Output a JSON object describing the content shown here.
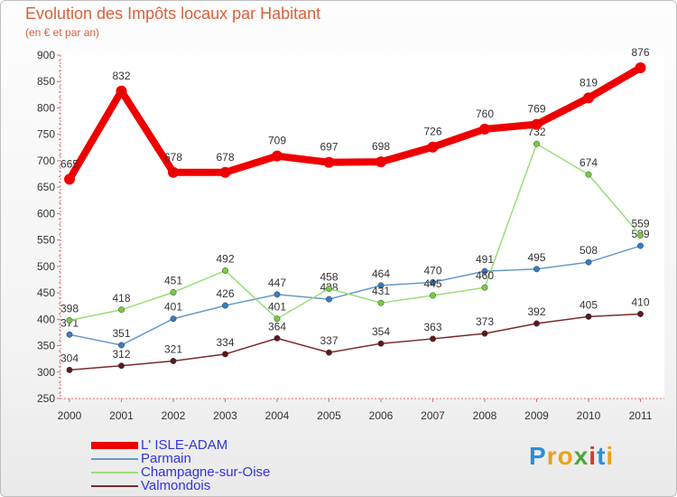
{
  "header": {
    "title": "Evolution des Impôts locaux par Habitant",
    "subtitle": "(en € et par an)"
  },
  "logo": {
    "letters": [
      "P",
      "r",
      "o",
      "x",
      "i",
      "t",
      "i"
    ],
    "colors": [
      "#2a8fd6",
      "#e8a21c",
      "#e8a21c",
      "#4aa83a",
      "#d23a2a",
      "#2a8fd6",
      "#e8a21c"
    ]
  },
  "chart_data": {
    "type": "line",
    "title": "Evolution des Impôts locaux par Habitant",
    "subtitle": "(en € et par an)",
    "xlabel": "",
    "ylabel": "",
    "categories": [
      "2000",
      "2001",
      "2002",
      "2003",
      "2004",
      "2005",
      "2006",
      "2007",
      "2008",
      "2009",
      "2010",
      "2011"
    ],
    "ylim": [
      250,
      900
    ],
    "yticks": [
      250,
      300,
      350,
      400,
      450,
      500,
      550,
      600,
      650,
      700,
      750,
      800,
      850,
      900
    ],
    "grid": false,
    "legend_position": "bottom-left",
    "series": [
      {
        "name": "L' ISLE-ADAM",
        "values": [
          665,
          832,
          678,
          678,
          709,
          697,
          698,
          726,
          760,
          769,
          819,
          876
        ],
        "labels": [
          "665",
          "832",
          "678",
          "678",
          "709",
          "697",
          "698",
          "726",
          "760",
          "769",
          "819",
          "876"
        ],
        "color": "#ee0000",
        "marker_color": "#ee0000",
        "width": 8,
        "marker_r": 6
      },
      {
        "name": "Parmain",
        "values": [
          371,
          351,
          401,
          426,
          447,
          438,
          464,
          470,
          491,
          495,
          508,
          539
        ],
        "labels": [
          "371",
          "351",
          "401",
          "426",
          "447",
          "438",
          "464",
          "470",
          "491",
          "495",
          "508",
          "539"
        ],
        "color": "#6699cc",
        "marker_color": "#3a7cc0",
        "width": 1.5,
        "marker_r": 3.2
      },
      {
        "name": "Champagne-sur-Oise",
        "values": [
          398,
          418,
          451,
          492,
          401,
          458,
          431,
          445,
          460,
          732,
          674,
          559
        ],
        "labels": [
          "398",
          "418",
          "451",
          "492",
          "401",
          "458",
          "431",
          "445",
          "460",
          "732",
          "674",
          "559"
        ],
        "color": "#99dd77",
        "marker_color": "#77cc44",
        "width": 1.5,
        "marker_r": 3.2
      },
      {
        "name": "Valmondois",
        "values": [
          304,
          312,
          321,
          334,
          364,
          337,
          354,
          363,
          373,
          392,
          405,
          410
        ],
        "labels": [
          "304",
          "312",
          "321",
          "334",
          "364",
          "337",
          "354",
          "363",
          "373",
          "392",
          "405",
          "410"
        ],
        "color": "#7a2a2a",
        "marker_color": "#5a1a1a",
        "width": 1.5,
        "marker_r": 3.2
      }
    ]
  }
}
